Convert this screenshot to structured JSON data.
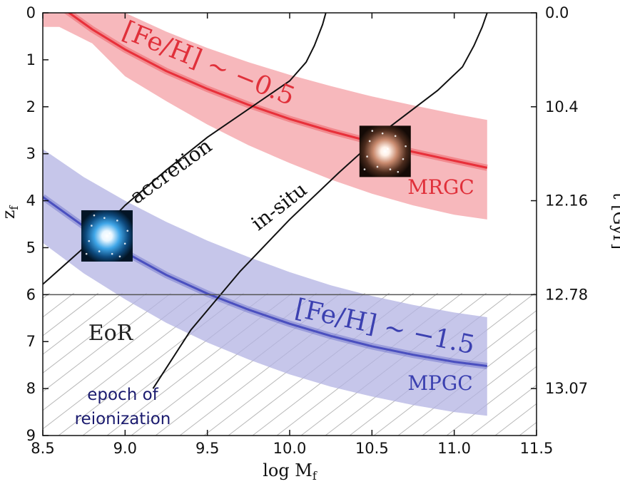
{
  "chart_data": {
    "type": "line",
    "xlabel": "log M",
    "xlabel_sub": "f",
    "ylabel": "z",
    "ylabel_sub": "f",
    "y2label": "t [Gyr]",
    "xlim": [
      8.5,
      11.5
    ],
    "ylim": [
      0,
      9
    ],
    "y_inverted": true,
    "x_ticks": [
      "8.5",
      "9.0",
      "9.5",
      "10.0",
      "10.5",
      "11.0",
      "11.5"
    ],
    "y_ticks": [
      "0",
      "1",
      "2",
      "3",
      "4",
      "5",
      "6",
      "7",
      "8",
      "9"
    ],
    "y2_ticks": [
      {
        "z": 0,
        "label": "0.0"
      },
      {
        "z": 2,
        "label": "10.4"
      },
      {
        "z": 4,
        "label": "12.16"
      },
      {
        "z": 6,
        "label": "12.78"
      },
      {
        "z": 8,
        "label": "13.07"
      }
    ],
    "eor_line_z": 6,
    "series": [
      {
        "name": "[Fe/H] ~ −0.5",
        "color": "#e8303a",
        "band_color": "#f4a0a5",
        "x": [
          8.5,
          8.6,
          8.8,
          9.0,
          9.25,
          9.5,
          9.75,
          10.0,
          10.25,
          10.5,
          10.75,
          11.0,
          11.2
        ],
        "y": [
          -0.45,
          -0.15,
          0.35,
          0.78,
          1.24,
          1.62,
          1.96,
          2.26,
          2.52,
          2.75,
          2.96,
          3.15,
          3.3
        ],
        "band_lower": [
          -0.7,
          -0.8,
          -0.4,
          0.0,
          0.4,
          0.75,
          1.05,
          1.32,
          1.56,
          1.78,
          1.97,
          2.15,
          2.28
        ],
        "band_upper": [
          0.3,
          0.3,
          0.65,
          1.35,
          1.88,
          2.38,
          2.82,
          3.2,
          3.55,
          3.85,
          4.1,
          4.3,
          4.4
        ],
        "label": "MRGC"
      },
      {
        "name": "[Fe/H] ~ −1.5",
        "color": "#4a4fbf",
        "band_color": "#b3b3e3",
        "x": [
          8.5,
          8.75,
          9.0,
          9.25,
          9.5,
          9.75,
          10.0,
          10.25,
          10.5,
          10.75,
          11.0,
          11.2
        ],
        "y": [
          3.92,
          4.55,
          5.1,
          5.58,
          5.98,
          6.32,
          6.62,
          6.88,
          7.1,
          7.28,
          7.43,
          7.52
        ],
        "band_lower": [
          2.9,
          3.5,
          4.0,
          4.45,
          4.85,
          5.2,
          5.52,
          5.8,
          6.03,
          6.22,
          6.38,
          6.48
        ],
        "band_upper": [
          4.9,
          5.55,
          6.1,
          6.6,
          7.02,
          7.38,
          7.7,
          7.96,
          8.17,
          8.35,
          8.5,
          8.58
        ],
        "label": "MPGC"
      },
      {
        "name": "accretion",
        "color": "#111111",
        "x": [
          8.5,
          8.75,
          9.0,
          9.25,
          9.5,
          9.75,
          10.0,
          10.1,
          10.15,
          10.2,
          10.22
        ],
        "y": [
          5.78,
          5.0,
          4.1,
          3.35,
          2.65,
          2.05,
          1.45,
          1.05,
          0.7,
          0.25,
          0.0
        ]
      },
      {
        "name": "in-situ",
        "color": "#111111",
        "x": [
          9.17,
          9.4,
          9.7,
          10.0,
          10.3,
          10.6,
          10.9,
          11.05,
          11.12,
          11.17,
          11.2
        ],
        "y": [
          8.0,
          6.75,
          5.5,
          4.4,
          3.4,
          2.45,
          1.65,
          1.15,
          0.7,
          0.3,
          0.0
        ]
      }
    ],
    "annotations": {
      "eor": "EoR",
      "epoch_line1": "epoch of",
      "epoch_line2": "reionization",
      "accretion": "accretion",
      "insitu": "in-situ",
      "fe_high": "[Fe/H] ~ −0.5",
      "fe_low": "[Fe/H] ~ −1.5",
      "mrgc": "MRGC",
      "mpgc": "MPGC"
    },
    "cluster_images": [
      {
        "name": "blue-cluster-image",
        "x": 8.89,
        "z": 4.75,
        "color": "#2a8fd6"
      },
      {
        "name": "red-cluster-image",
        "x": 10.58,
        "z": 2.95,
        "color": "#d98a6a"
      }
    ]
  }
}
